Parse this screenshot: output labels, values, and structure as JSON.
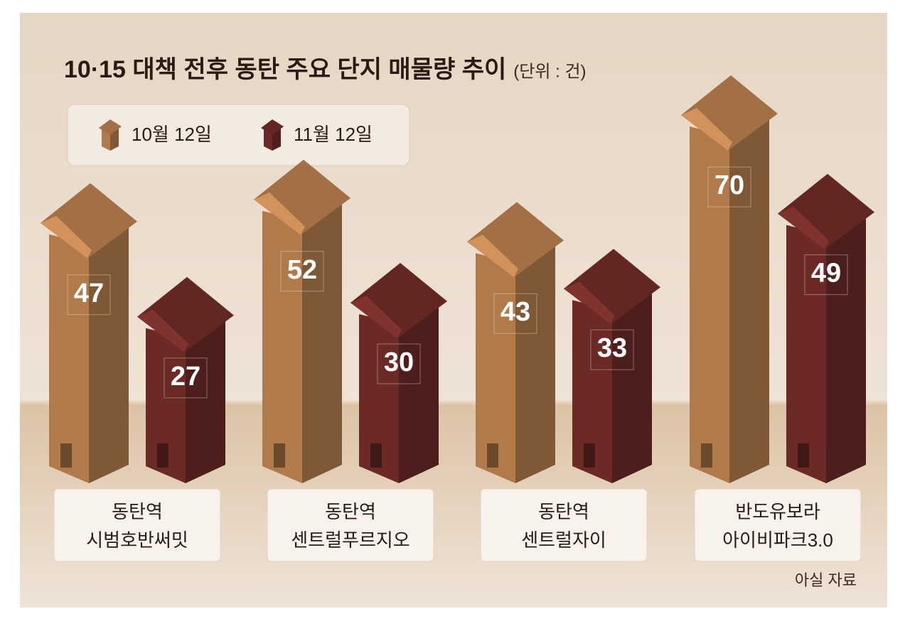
{
  "chart_data": {
    "type": "house-bar",
    "title": "10·15 대책 전후 동탄 주요 단지 매물량 추이",
    "unit": "(단위 : 건)",
    "source": "아실 자료",
    "categories": [
      [
        "동탄역",
        "시범호반써밋"
      ],
      [
        "동탄역",
        "센트럴푸르지오"
      ],
      [
        "동탄역",
        "센트럴자이"
      ],
      [
        "반도유보라",
        "아이비파크3.0"
      ]
    ],
    "series": [
      {
        "name": "10월 12일",
        "color": "#b07a4a",
        "values": [
          47,
          52,
          43,
          70
        ]
      },
      {
        "name": "11월 12일",
        "color": "#6b2a26",
        "values": [
          27,
          30,
          33,
          49
        ]
      }
    ]
  }
}
